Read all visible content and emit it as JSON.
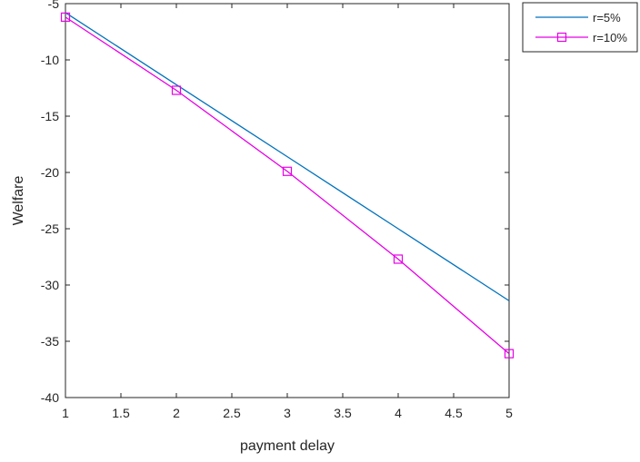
{
  "chart_data": {
    "type": "line",
    "title": "",
    "xlabel": "payment delay",
    "ylabel": "Welfare",
    "xlim": [
      1,
      5
    ],
    "ylim": [
      -40,
      -5
    ],
    "xticks": [
      1,
      1.5,
      2,
      2.5,
      3,
      3.5,
      4,
      4.5,
      5
    ],
    "xtick_labels": [
      "1",
      "1.5",
      "2",
      "2.5",
      "3",
      "3.5",
      "4",
      "4.5",
      "5"
    ],
    "yticks": [
      -40,
      -35,
      -30,
      -25,
      -20,
      -15,
      -10,
      -5
    ],
    "ytick_labels": [
      "-40",
      "-35",
      "-30",
      "-25",
      "-20",
      "-15",
      "-10",
      "-5"
    ],
    "grid": false,
    "legend_position": "outside-top-right",
    "series": [
      {
        "name": "r=5%",
        "color": "#0072BD",
        "marker": "none",
        "x": [
          1,
          2,
          3,
          4,
          5
        ],
        "y": [
          -5.8,
          -12.2,
          -18.6,
          -25.0,
          -31.4
        ]
      },
      {
        "name": "r=10%",
        "color": "#E600E6",
        "marker": "square",
        "x": [
          1,
          2,
          3,
          4,
          5
        ],
        "y": [
          -6.2,
          -12.7,
          -19.9,
          -27.7,
          -36.1
        ]
      }
    ]
  }
}
